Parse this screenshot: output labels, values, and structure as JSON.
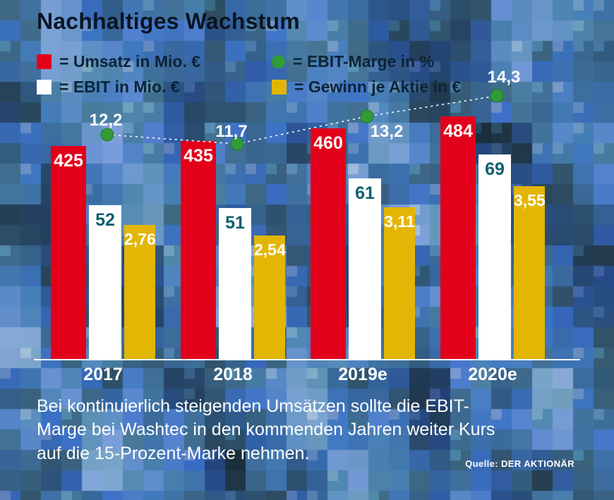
{
  "title": "Nachhaltiges Wachstum",
  "legend": [
    {
      "label": "= Umsatz in Mio. €",
      "color": "#e2001a",
      "shape": "square"
    },
    {
      "label": "= EBIT-Marge in %",
      "color": "#319b35",
      "shape": "circle"
    },
    {
      "label": "= EBIT in Mio. €",
      "color": "#ffffff",
      "shape": "square"
    },
    {
      "label": "= Gewinn je Aktie in €",
      "color": "#e3b505",
      "shape": "square"
    }
  ],
  "chart_data": {
    "type": "bar",
    "categories": [
      "2017",
      "2018",
      "2019e",
      "2020e"
    ],
    "series": [
      {
        "name": "Umsatz in Mio. €",
        "color": "#e2001a",
        "values": [
          425,
          435,
          460,
          484
        ],
        "labels": [
          "425",
          "435",
          "460",
          "484"
        ]
      },
      {
        "name": "EBIT in Mio. €",
        "color": "#ffffff",
        "values": [
          52,
          51,
          61,
          69
        ],
        "labels": [
          "52",
          "51",
          "61",
          "69"
        ]
      },
      {
        "name": "Gewinn je Aktie in €",
        "color": "#e3b505",
        "values": [
          2.76,
          2.54,
          3.11,
          3.55
        ],
        "labels": [
          "2,76",
          "2,54",
          "3,11",
          "3,55"
        ]
      }
    ],
    "line_series": {
      "name": "EBIT-Marge in %",
      "color": "#319b35",
      "values": [
        12.2,
        11.7,
        13.2,
        14.3
      ],
      "labels": [
        "12,2",
        "11,7",
        "13,2",
        "14,3"
      ]
    },
    "legend_position": "top",
    "grid": false
  },
  "caption": "Bei kontinuierlich steigenden Umsätzen sollte die EBIT-\nMarge bei Washtec in den kommenden Jahren weiter Kurs\nauf die 15-Prozent-Marke nehmen.",
  "source": "Quelle: DER AKTIONÄR"
}
